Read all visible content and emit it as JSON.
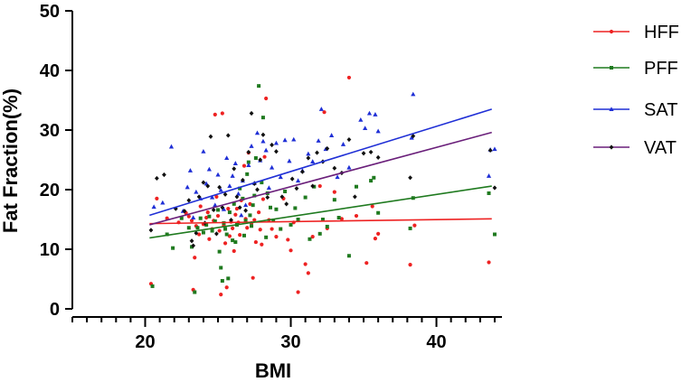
{
  "chart_data": {
    "type": "scatter",
    "title": "",
    "xlabel": "BMI",
    "ylabel": "Fat Fraction(%)",
    "xlim": [
      15,
      44.5
    ],
    "ylim": [
      0,
      50
    ],
    "xticks": [
      20,
      30,
      40
    ],
    "xtick_labels": [
      "20",
      "30",
      "40"
    ],
    "x_minor_step": 1,
    "yticks": [
      0,
      10,
      20,
      30,
      40,
      50
    ],
    "ytick_labels": [
      "0",
      "10",
      "20",
      "30",
      "40",
      "50"
    ],
    "grid": false,
    "legend_position": "right",
    "series": [
      {
        "name": "HFF",
        "color": "#ee2222",
        "marker": "circle",
        "fit": {
          "x": [
            20.3,
            43.8
          ],
          "y": [
            14.3,
            15.1
          ]
        },
        "points": [
          [
            20.4,
            4.2
          ],
          [
            20.8,
            18.5
          ],
          [
            21.5,
            15.2
          ],
          [
            22.3,
            14.5
          ],
          [
            22.8,
            16.1
          ],
          [
            23.0,
            15.5
          ],
          [
            23.2,
            14.8
          ],
          [
            23.3,
            3.2
          ],
          [
            23.4,
            8.6
          ],
          [
            23.5,
            13.9
          ],
          [
            23.7,
            12.5
          ],
          [
            23.8,
            17.2
          ],
          [
            24.0,
            14.2
          ],
          [
            24.2,
            15.3
          ],
          [
            24.3,
            16.2
          ],
          [
            24.4,
            11.7
          ],
          [
            24.6,
            13.4
          ],
          [
            24.7,
            14.8
          ],
          [
            24.8,
            32.6
          ],
          [
            24.9,
            18.8
          ],
          [
            25.0,
            15.6
          ],
          [
            25.1,
            13.1
          ],
          [
            25.2,
            2.4
          ],
          [
            25.3,
            32.8
          ],
          [
            25.4,
            14.0
          ],
          [
            25.5,
            11.0
          ],
          [
            25.6,
            3.6
          ],
          [
            25.7,
            16.8
          ],
          [
            25.8,
            12.2
          ],
          [
            25.9,
            14.6
          ],
          [
            26.0,
            13.5
          ],
          [
            26.1,
            9.7
          ],
          [
            26.2,
            15.8
          ],
          [
            26.3,
            16.8
          ],
          [
            26.4,
            14.5
          ],
          [
            26.5,
            12.4
          ],
          [
            26.6,
            18.2
          ],
          [
            26.8,
            24.0
          ],
          [
            26.9,
            15.1
          ],
          [
            27.0,
            13.6
          ],
          [
            27.1,
            26.2
          ],
          [
            27.2,
            17.6
          ],
          [
            27.3,
            14.4
          ],
          [
            27.4,
            5.2
          ],
          [
            27.5,
            14.9
          ],
          [
            27.6,
            11.2
          ],
          [
            27.8,
            16.2
          ],
          [
            27.9,
            13.3
          ],
          [
            28.0,
            10.8
          ],
          [
            28.1,
            18.4
          ],
          [
            28.2,
            25.5
          ],
          [
            28.3,
            35.3
          ],
          [
            28.5,
            14.9
          ],
          [
            28.7,
            13.4
          ],
          [
            29.0,
            12.1
          ],
          [
            29.5,
            18.5
          ],
          [
            29.8,
            11.6
          ],
          [
            30.0,
            9.8
          ],
          [
            30.2,
            14.5
          ],
          [
            30.5,
            2.8
          ],
          [
            31.0,
            7.5
          ],
          [
            31.2,
            6.0
          ],
          [
            31.5,
            12.1
          ],
          [
            32.0,
            20.6
          ],
          [
            32.3,
            33.0
          ],
          [
            32.5,
            13.5
          ],
          [
            33.0,
            19.6
          ],
          [
            33.5,
            15.1
          ],
          [
            34.0,
            38.8
          ],
          [
            34.5,
            15.6
          ],
          [
            35.2,
            7.7
          ],
          [
            35.6,
            17.2
          ],
          [
            35.8,
            11.8
          ],
          [
            36.0,
            12.6
          ],
          [
            38.2,
            7.4
          ],
          [
            38.5,
            14.0
          ],
          [
            43.6,
            7.8
          ]
        ]
      },
      {
        "name": "PFF",
        "color": "#1f7a1f",
        "marker": "square",
        "fit": {
          "x": [
            20.3,
            43.8
          ],
          "y": [
            11.9,
            20.6
          ]
        },
        "points": [
          [
            20.5,
            3.8
          ],
          [
            21.5,
            12.5
          ],
          [
            21.9,
            10.2
          ],
          [
            22.5,
            15.2
          ],
          [
            23.0,
            13.6
          ],
          [
            23.2,
            10.4
          ],
          [
            23.4,
            2.8
          ],
          [
            23.6,
            13.6
          ],
          [
            23.8,
            15.2
          ],
          [
            24.0,
            12.8
          ],
          [
            24.2,
            14.1
          ],
          [
            24.4,
            15.5
          ],
          [
            24.6,
            13.1
          ],
          [
            24.8,
            14.7
          ],
          [
            25.0,
            16.6
          ],
          [
            25.1,
            9.6
          ],
          [
            25.2,
            6.9
          ],
          [
            25.3,
            4.7
          ],
          [
            25.4,
            14.4
          ],
          [
            25.5,
            13.4
          ],
          [
            25.6,
            12.5
          ],
          [
            25.7,
            5.1
          ],
          [
            25.8,
            16.2
          ],
          [
            26.0,
            11.5
          ],
          [
            26.1,
            17.6
          ],
          [
            26.2,
            11.2
          ],
          [
            26.3,
            14.1
          ],
          [
            26.5,
            20.2
          ],
          [
            26.7,
            18.5
          ],
          [
            26.8,
            12.3
          ],
          [
            26.9,
            14.8
          ],
          [
            27.0,
            22.6
          ],
          [
            27.1,
            24.6
          ],
          [
            27.2,
            15.7
          ],
          [
            27.3,
            13.9
          ],
          [
            27.4,
            17.4
          ],
          [
            27.5,
            19.0
          ],
          [
            27.6,
            25.3
          ],
          [
            27.8,
            37.4
          ],
          [
            28.0,
            21.2
          ],
          [
            28.1,
            32.1
          ],
          [
            28.3,
            12.0
          ],
          [
            28.4,
            19.4
          ],
          [
            28.6,
            17.0
          ],
          [
            28.8,
            14.8
          ],
          [
            29.0,
            16.7
          ],
          [
            29.3,
            13.4
          ],
          [
            29.6,
            19.7
          ],
          [
            30.0,
            14.1
          ],
          [
            30.3,
            16.9
          ],
          [
            30.5,
            15.0
          ],
          [
            31.0,
            18.7
          ],
          [
            31.3,
            11.7
          ],
          [
            31.6,
            20.5
          ],
          [
            32.0,
            12.6
          ],
          [
            32.2,
            15.0
          ],
          [
            32.5,
            13.8
          ],
          [
            33.0,
            18.3
          ],
          [
            33.3,
            15.3
          ],
          [
            34.0,
            8.9
          ],
          [
            34.5,
            20.5
          ],
          [
            35.5,
            21.5
          ],
          [
            35.7,
            22.0
          ],
          [
            36.0,
            16.1
          ],
          [
            38.2,
            13.5
          ],
          [
            38.4,
            18.6
          ],
          [
            43.6,
            19.4
          ],
          [
            44.0,
            12.5
          ]
        ]
      },
      {
        "name": "SAT",
        "color": "#1f2fd6",
        "marker": "triangle",
        "fit": {
          "x": [
            20.3,
            43.8
          ],
          "y": [
            15.7,
            33.5
          ]
        },
        "points": [
          [
            20.6,
            17.1
          ],
          [
            21.2,
            17.8
          ],
          [
            21.8,
            27.2
          ],
          [
            22.6,
            16.4
          ],
          [
            22.9,
            20.4
          ],
          [
            23.1,
            23.2
          ],
          [
            23.3,
            15.3
          ],
          [
            23.5,
            19.6
          ],
          [
            23.8,
            18.5
          ],
          [
            24.0,
            26.4
          ],
          [
            24.2,
            21.0
          ],
          [
            24.4,
            23.4
          ],
          [
            24.6,
            18.7
          ],
          [
            24.8,
            17.4
          ],
          [
            25.0,
            22.5
          ],
          [
            25.2,
            19.9
          ],
          [
            25.4,
            16.7
          ],
          [
            25.6,
            25.3
          ],
          [
            25.8,
            20.6
          ],
          [
            26.0,
            22.3
          ],
          [
            26.2,
            24.4
          ],
          [
            26.4,
            19.3
          ],
          [
            26.6,
            15.7
          ],
          [
            26.7,
            21.5
          ],
          [
            26.9,
            17.4
          ],
          [
            27.1,
            24.1
          ],
          [
            27.3,
            27.3
          ],
          [
            27.5,
            21.1
          ],
          [
            27.7,
            29.5
          ],
          [
            27.9,
            24.9
          ],
          [
            28.1,
            28.1
          ],
          [
            28.3,
            26.6
          ],
          [
            28.5,
            20.3
          ],
          [
            28.7,
            23.7
          ],
          [
            29.0,
            27.8
          ],
          [
            29.3,
            22.1
          ],
          [
            29.6,
            28.3
          ],
          [
            29.9,
            24.8
          ],
          [
            30.2,
            28.4
          ],
          [
            30.5,
            21.5
          ],
          [
            30.8,
            23.2
          ],
          [
            31.2,
            26.0
          ],
          [
            31.5,
            24.7
          ],
          [
            31.9,
            28.2
          ],
          [
            32.1,
            33.5
          ],
          [
            32.4,
            26.8
          ],
          [
            32.8,
            29.1
          ],
          [
            33.2,
            22.1
          ],
          [
            33.6,
            27.6
          ],
          [
            34.0,
            23.7
          ],
          [
            34.8,
            31.7
          ],
          [
            35.1,
            30.3
          ],
          [
            35.4,
            32.8
          ],
          [
            35.8,
            32.6
          ],
          [
            36.0,
            29.8
          ],
          [
            38.3,
            28.7
          ],
          [
            38.4,
            36.0
          ],
          [
            43.6,
            22.3
          ],
          [
            43.7,
            26.7
          ],
          [
            44.0,
            26.8
          ]
        ]
      },
      {
        "name": "VAT",
        "color": "#111111",
        "marker": "diamond",
        "fit": {
          "x": [
            20.3,
            43.8
          ],
          "y": [
            14.1,
            29.6
          ]
        },
        "points": [
          [
            20.4,
            13.2
          ],
          [
            20.8,
            21.9
          ],
          [
            21.3,
            22.5
          ],
          [
            22.1,
            16.8
          ],
          [
            22.7,
            16.4
          ],
          [
            23.0,
            18.2
          ],
          [
            23.2,
            11.4
          ],
          [
            23.3,
            10.6
          ],
          [
            23.5,
            12.7
          ],
          [
            23.7,
            18.8
          ],
          [
            24.0,
            21.2
          ],
          [
            24.1,
            14.4
          ],
          [
            24.3,
            20.6
          ],
          [
            24.5,
            28.9
          ],
          [
            24.7,
            16.6
          ],
          [
            24.9,
            12.6
          ],
          [
            25.1,
            20.4
          ],
          [
            25.3,
            17.0
          ],
          [
            25.5,
            19.2
          ],
          [
            25.7,
            29.1
          ],
          [
            25.9,
            14.9
          ],
          [
            26.1,
            23.5
          ],
          [
            26.3,
            18.8
          ],
          [
            26.5,
            17.0
          ],
          [
            26.7,
            21.6
          ],
          [
            26.9,
            16.5
          ],
          [
            27.1,
            26.3
          ],
          [
            27.3,
            32.8
          ],
          [
            27.5,
            21.0
          ],
          [
            27.7,
            20.0
          ],
          [
            27.9,
            25.0
          ],
          [
            28.1,
            29.2
          ],
          [
            28.4,
            18.7
          ],
          [
            28.7,
            27.5
          ],
          [
            29.0,
            26.4
          ],
          [
            29.4,
            18.8
          ],
          [
            29.7,
            17.6
          ],
          [
            30.1,
            21.8
          ],
          [
            30.4,
            20.2
          ],
          [
            30.8,
            23.0
          ],
          [
            31.2,
            25.3
          ],
          [
            31.5,
            20.6
          ],
          [
            31.8,
            26.2
          ],
          [
            32.2,
            24.7
          ],
          [
            32.5,
            26.9
          ],
          [
            33.0,
            23.6
          ],
          [
            33.5,
            22.8
          ],
          [
            34.0,
            28.4
          ],
          [
            34.4,
            18.8
          ],
          [
            35.0,
            26.1
          ],
          [
            35.5,
            26.3
          ],
          [
            36.0,
            25.4
          ],
          [
            38.2,
            22.0
          ],
          [
            38.4,
            29.0
          ],
          [
            43.7,
            26.6
          ],
          [
            44.0,
            20.3
          ]
        ]
      }
    ],
    "legend_labels": [
      "HFF",
      "PFF",
      "SAT",
      "VAT"
    ]
  },
  "colors": {
    "HFF": "#ee2222",
    "PFF": "#1f7a1f",
    "SAT": "#1f2fd6",
    "VAT_line": "#6a1f7a",
    "VAT_marker": "#111111"
  }
}
